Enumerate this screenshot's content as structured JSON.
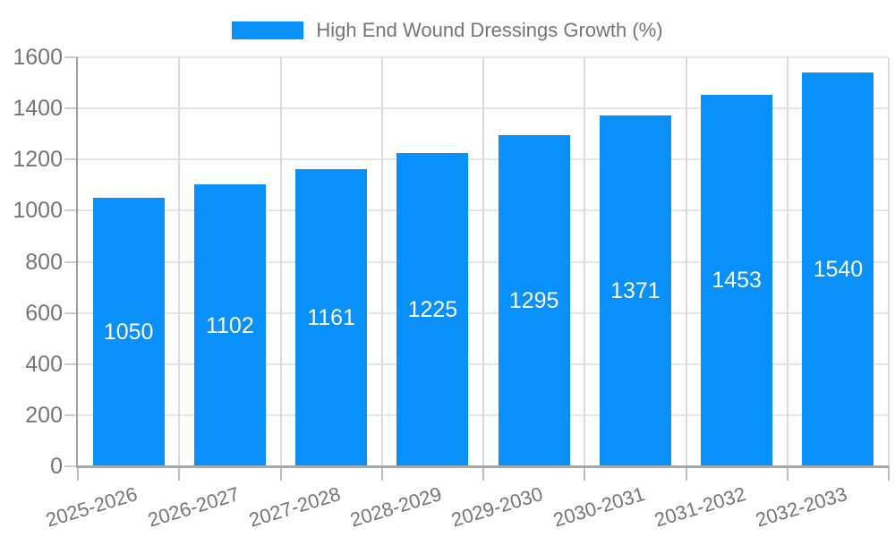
{
  "legend": {
    "label": "High End Wound Dressings Growth (%)"
  },
  "chart_data": {
    "type": "bar",
    "title": "High End Wound Dressings Growth (%)",
    "legend_position": "top",
    "categories": [
      "2025-2026",
      "2026-2027",
      "2027-2028",
      "2028-2029",
      "2029-2030",
      "2030-2031",
      "2031-2032",
      "2032-2033"
    ],
    "series": [
      {
        "name": "High End Wound Dressings Growth (%)",
        "values": [
          1050,
          1102,
          1161,
          1225,
          1295,
          1371,
          1453,
          1540
        ]
      }
    ],
    "bar_labels_shown": true,
    "xlabel": "",
    "ylabel": "",
    "ylim": [
      0,
      1600
    ],
    "ytick_step": 200,
    "ytick_labels": [
      "0",
      "200",
      "400",
      "600",
      "800",
      "1000",
      "1200",
      "1400",
      "1600"
    ],
    "grid": true
  },
  "colors": {
    "bar": "#0990fb",
    "bar_value_text": "#ffffff",
    "axis_text": "#757575",
    "gridline_h": "#e6e6e6",
    "gridline_v": "#dadada",
    "axis_line": "#a8a8a8"
  }
}
